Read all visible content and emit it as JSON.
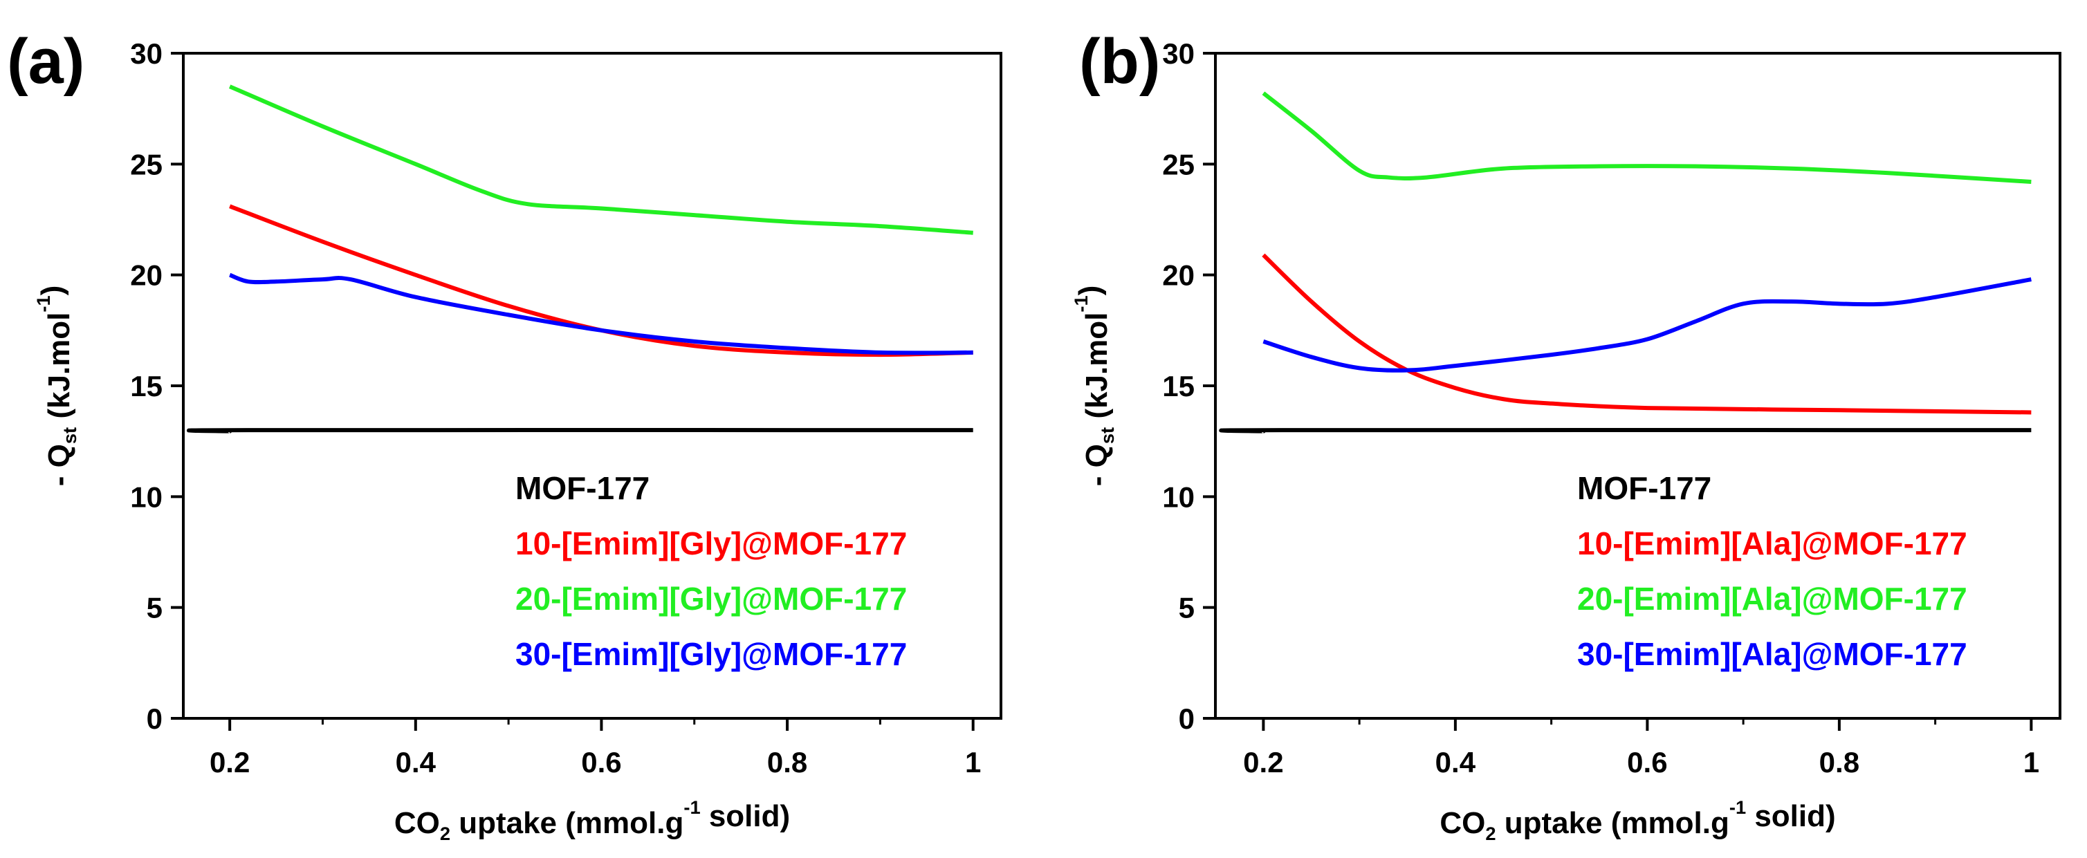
{
  "chart_data": [
    {
      "panel_label": "(a)",
      "type": "line",
      "xlabel": {
        "pre": "CO",
        "sub": "2",
        "mid": " uptake (mmol.g",
        "sup": "-1",
        "post": " solid)"
      },
      "ylabel": {
        "pre": "- Q",
        "sub": "st",
        "mid": " (kJ.mol",
        "sup": "-1",
        "post": ")"
      },
      "xlim": [
        0.15,
        1.03
      ],
      "ylim": [
        0,
        30
      ],
      "xticks": [
        0.2,
        0.4,
        0.6,
        0.8,
        1
      ],
      "xtick_labels": [
        "0.2",
        "0.4",
        "0.6",
        "0.8",
        "1"
      ],
      "yticks": [
        0,
        5,
        10,
        15,
        20,
        25,
        30
      ],
      "ytick_labels": [
        "0",
        "5",
        "10",
        "15",
        "20",
        "25",
        "30"
      ],
      "legend_placement": "lower-right",
      "series": [
        {
          "name": "MOF-177",
          "color": "#000000",
          "x": [
            0.2,
            0.22,
            1.0
          ],
          "y": [
            12.95,
            13.0,
            13.0
          ]
        },
        {
          "name": "10-[Emim][Gly]@MOF-177",
          "color": "#ff0000",
          "x": [
            0.2,
            0.3,
            0.4,
            0.5,
            0.6,
            0.7,
            0.8,
            0.9,
            1.0
          ],
          "y": [
            23.1,
            21.5,
            20.0,
            18.6,
            17.5,
            16.8,
            16.5,
            16.4,
            16.5
          ]
        },
        {
          "name": "20-[Emim][Gly]@MOF-177",
          "color": "#22ee22",
          "x": [
            0.2,
            0.3,
            0.4,
            0.47,
            0.52,
            0.6,
            0.7,
            0.8,
            0.9,
            1.0
          ],
          "y": [
            28.5,
            26.7,
            25.0,
            23.8,
            23.2,
            23.0,
            22.7,
            22.4,
            22.2,
            21.9
          ]
        },
        {
          "name": "30-[Emim][Gly]@MOF-177",
          "color": "#0000ff",
          "x": [
            0.2,
            0.22,
            0.25,
            0.3,
            0.33,
            0.4,
            0.5,
            0.6,
            0.7,
            0.8,
            0.9,
            1.0
          ],
          "y": [
            20.0,
            19.7,
            19.7,
            19.8,
            19.8,
            19.0,
            18.2,
            17.5,
            17.0,
            16.7,
            16.5,
            16.5
          ]
        }
      ]
    },
    {
      "panel_label": "(b)",
      "type": "line",
      "xlabel": {
        "pre": "CO",
        "sub": "2",
        "mid": " uptake (mmol.g",
        "sup": "-1",
        "post": " solid)"
      },
      "ylabel": {
        "pre": "- Q",
        "sub": "st",
        "mid": " (kJ.mol",
        "sup": "-1",
        "post": ")"
      },
      "xlim": [
        0.15,
        1.03
      ],
      "ylim": [
        0,
        30
      ],
      "xticks": [
        0.2,
        0.4,
        0.6,
        0.8,
        1
      ],
      "xtick_labels": [
        "0.2",
        "0.4",
        "0.6",
        "0.8",
        "1"
      ],
      "yticks": [
        0,
        5,
        10,
        15,
        20,
        25,
        30
      ],
      "ytick_labels": [
        "0",
        "5",
        "10",
        "15",
        "20",
        "25",
        "30"
      ],
      "legend_placement": "lower-right",
      "series": [
        {
          "name": "MOF-177",
          "color": "#000000",
          "x": [
            0.2,
            0.22,
            1.0
          ],
          "y": [
            12.95,
            13.0,
            13.0
          ]
        },
        {
          "name": "10-[Emim][Ala]@MOF-177",
          "color": "#ff0000",
          "x": [
            0.2,
            0.25,
            0.3,
            0.35,
            0.4,
            0.45,
            0.5,
            0.6,
            0.8,
            1.0
          ],
          "y": [
            20.9,
            18.8,
            17.0,
            15.7,
            14.9,
            14.4,
            14.2,
            14.0,
            13.9,
            13.8
          ]
        },
        {
          "name": "20-[Emim][Ala]@MOF-177",
          "color": "#22ee22",
          "x": [
            0.2,
            0.25,
            0.3,
            0.33,
            0.37,
            0.45,
            0.55,
            0.65,
            0.75,
            0.85,
            1.0
          ],
          "y": [
            28.2,
            26.5,
            24.7,
            24.4,
            24.4,
            24.8,
            24.9,
            24.9,
            24.8,
            24.6,
            24.2
          ]
        },
        {
          "name": "30-[Emim][Ala]@MOF-177",
          "color": "#0000ff",
          "x": [
            0.2,
            0.25,
            0.3,
            0.35,
            0.4,
            0.5,
            0.55,
            0.6,
            0.65,
            0.7,
            0.75,
            0.8,
            0.85,
            0.9,
            1.0
          ],
          "y": [
            17.0,
            16.3,
            15.8,
            15.7,
            15.9,
            16.4,
            16.7,
            17.1,
            17.9,
            18.7,
            18.8,
            18.7,
            18.7,
            19.0,
            19.8
          ]
        }
      ]
    }
  ]
}
